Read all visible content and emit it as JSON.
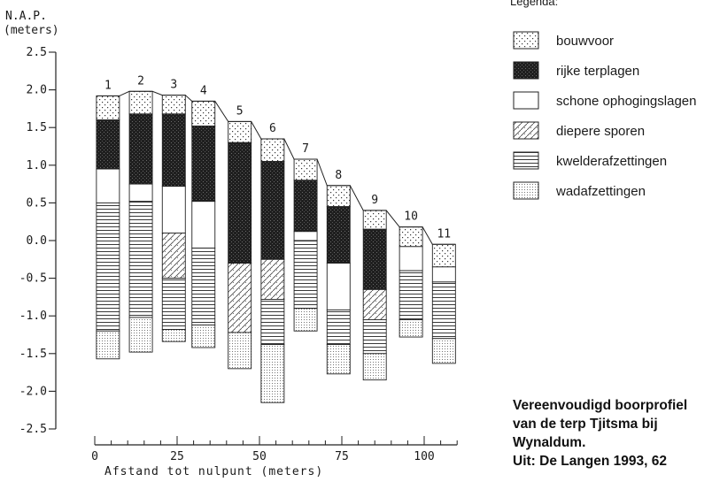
{
  "y_axis": {
    "title_line1": "N.A.P.",
    "title_line2": "(meters)",
    "ticks": [
      "2.5",
      "2.0",
      "1.5",
      "1.0",
      "0.5",
      "0.0",
      "-0.5",
      "-1.0",
      "-1.5",
      "-2.0",
      "-2.5"
    ]
  },
  "x_axis": {
    "title": "Afstand tot nulpunt (meters)",
    "ticks": [
      "0",
      "25",
      "50",
      "75",
      "100"
    ]
  },
  "legend": {
    "title": "Legenda:",
    "items": [
      {
        "key": "bouwvoor",
        "label": "bouwvoor"
      },
      {
        "key": "rijke",
        "label": "rijke terplagen"
      },
      {
        "key": "schone",
        "label": "schone ophogingslagen"
      },
      {
        "key": "diepere",
        "label": "diepere sporen"
      },
      {
        "key": "kwelder",
        "label": "kwelderafzettingen"
      },
      {
        "key": "wad",
        "label": "wadafzettingen"
      }
    ]
  },
  "caption": {
    "line1": "Vereenvoudigd boorprofiel",
    "line2": "van de terp Tjitsma bij",
    "line3": "Wynaldum.",
    "line4": "Uit: De Langen 1993, 62"
  },
  "chart_data": {
    "type": "stratigraphic-column",
    "x_unit": "meters",
    "y_unit": "meters N.A.P.",
    "xlim": [
      0,
      110
    ],
    "ylim": [
      -2.5,
      2.5
    ],
    "profiles": [
      {
        "label": "1",
        "x": 4,
        "layers": [
          {
            "type": "bouwvoor",
            "top": 1.92,
            "bottom": 1.6
          },
          {
            "type": "rijke",
            "top": 1.6,
            "bottom": 0.95
          },
          {
            "type": "schone",
            "top": 0.95,
            "bottom": 0.5
          },
          {
            "type": "kwelder",
            "top": 0.5,
            "bottom": -1.2
          },
          {
            "type": "wad",
            "top": -1.2,
            "bottom": -1.57
          }
        ]
      },
      {
        "label": "2",
        "x": 14,
        "layers": [
          {
            "type": "bouwvoor",
            "top": 1.98,
            "bottom": 1.68
          },
          {
            "type": "rijke",
            "top": 1.68,
            "bottom": 0.75
          },
          {
            "type": "schone",
            "top": 0.75,
            "bottom": 0.52
          },
          {
            "type": "kwelder",
            "top": 0.52,
            "bottom": -1.02
          },
          {
            "type": "wad",
            "top": -1.02,
            "bottom": -1.48
          }
        ]
      },
      {
        "label": "3",
        "x": 24,
        "layers": [
          {
            "type": "bouwvoor",
            "top": 1.93,
            "bottom": 1.68
          },
          {
            "type": "rijke",
            "top": 1.68,
            "bottom": 0.72
          },
          {
            "type": "schone",
            "top": 0.72,
            "bottom": 0.1
          },
          {
            "type": "diepere",
            "top": 0.1,
            "bottom": -0.5
          },
          {
            "type": "kwelder",
            "top": -0.5,
            "bottom": -1.18
          },
          {
            "type": "wad",
            "top": -1.18,
            "bottom": -1.34
          }
        ]
      },
      {
        "label": "4",
        "x": 33,
        "layers": [
          {
            "type": "bouwvoor",
            "top": 1.85,
            "bottom": 1.52
          },
          {
            "type": "rijke",
            "top": 1.52,
            "bottom": 0.52
          },
          {
            "type": "schone",
            "top": 0.52,
            "bottom": -0.1
          },
          {
            "type": "kwelder",
            "top": -0.1,
            "bottom": -1.12
          },
          {
            "type": "wad",
            "top": -1.12,
            "bottom": -1.42
          }
        ]
      },
      {
        "label": "5",
        "x": 44,
        "layers": [
          {
            "type": "bouwvoor",
            "top": 1.58,
            "bottom": 1.3
          },
          {
            "type": "rijke",
            "top": 1.3,
            "bottom": -0.3
          },
          {
            "type": "diepere",
            "top": -0.3,
            "bottom": -1.22
          },
          {
            "type": "wad",
            "top": -1.22,
            "bottom": -1.7
          }
        ]
      },
      {
        "label": "6",
        "x": 54,
        "layers": [
          {
            "type": "bouwvoor",
            "top": 1.35,
            "bottom": 1.05
          },
          {
            "type": "rijke",
            "top": 1.05,
            "bottom": -0.25
          },
          {
            "type": "diepere",
            "top": -0.25,
            "bottom": -0.78
          },
          {
            "type": "kwelder",
            "top": -0.78,
            "bottom": -1.38
          },
          {
            "type": "wad",
            "top": -1.38,
            "bottom": -2.15
          }
        ]
      },
      {
        "label": "7",
        "x": 64,
        "layers": [
          {
            "type": "bouwvoor",
            "top": 1.08,
            "bottom": 0.8
          },
          {
            "type": "rijke",
            "top": 0.8,
            "bottom": 0.12
          },
          {
            "type": "schone",
            "top": 0.12,
            "bottom": 0.0
          },
          {
            "type": "kwelder",
            "top": 0.0,
            "bottom": -0.9
          },
          {
            "type": "wad",
            "top": -0.9,
            "bottom": -1.2
          }
        ]
      },
      {
        "label": "8",
        "x": 74,
        "layers": [
          {
            "type": "bouwvoor",
            "top": 0.73,
            "bottom": 0.45
          },
          {
            "type": "rijke",
            "top": 0.45,
            "bottom": -0.3
          },
          {
            "type": "schone",
            "top": -0.3,
            "bottom": -0.92
          },
          {
            "type": "kwelder",
            "top": -0.92,
            "bottom": -1.38
          },
          {
            "type": "wad",
            "top": -1.38,
            "bottom": -1.77
          }
        ]
      },
      {
        "label": "9",
        "x": 85,
        "layers": [
          {
            "type": "bouwvoor",
            "top": 0.4,
            "bottom": 0.15
          },
          {
            "type": "rijke",
            "top": 0.15,
            "bottom": -0.65
          },
          {
            "type": "diepere",
            "top": -0.65,
            "bottom": -1.05
          },
          {
            "type": "kwelder",
            "top": -1.05,
            "bottom": -1.5
          },
          {
            "type": "wad",
            "top": -1.5,
            "bottom": -1.85
          }
        ]
      },
      {
        "label": "10",
        "x": 96,
        "layers": [
          {
            "type": "bouwvoor",
            "top": 0.18,
            "bottom": -0.08
          },
          {
            "type": "schone",
            "top": -0.08,
            "bottom": -0.4
          },
          {
            "type": "kwelder",
            "top": -0.4,
            "bottom": -1.05
          },
          {
            "type": "wad",
            "top": -1.05,
            "bottom": -1.28
          }
        ]
      },
      {
        "label": "11",
        "x": 106,
        "layers": [
          {
            "type": "bouwvoor",
            "top": -0.05,
            "bottom": -0.35
          },
          {
            "type": "schone",
            "top": -0.35,
            "bottom": -0.55
          },
          {
            "type": "kwelder",
            "top": -0.55,
            "bottom": -1.3
          },
          {
            "type": "wad",
            "top": -1.3,
            "bottom": -1.63
          }
        ]
      }
    ]
  }
}
